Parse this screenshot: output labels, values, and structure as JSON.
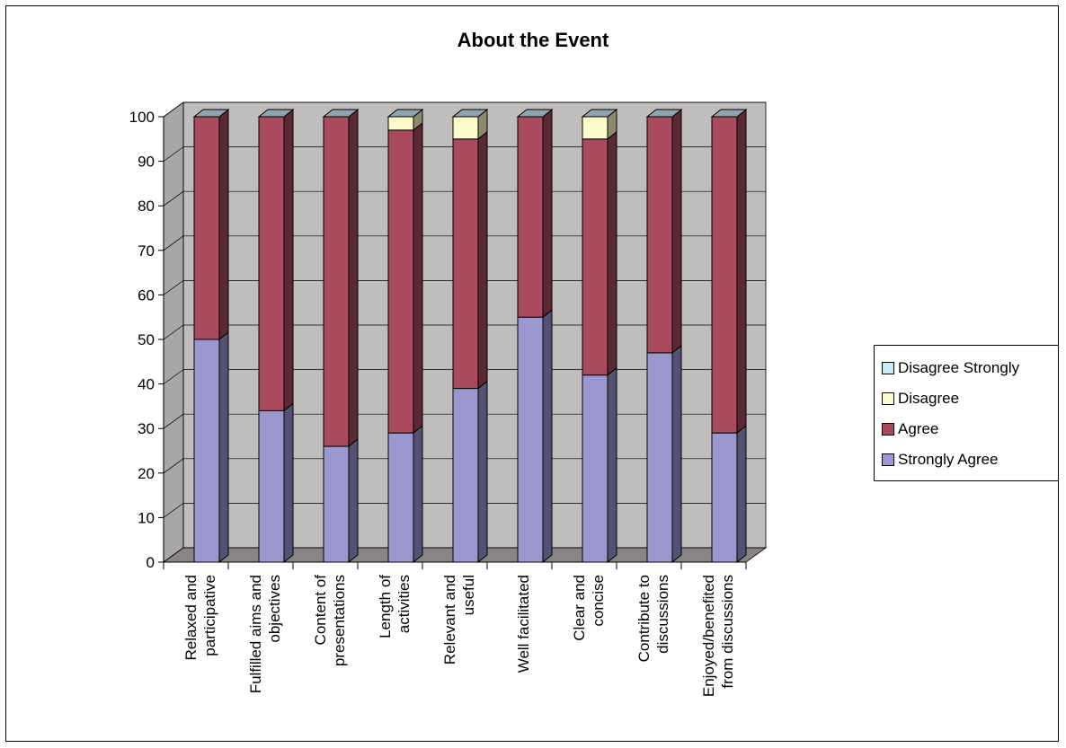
{
  "chart_data": {
    "type": "bar",
    "stacked": true,
    "three_d": true,
    "title": "About the Event",
    "xlabel": "",
    "ylabel": "",
    "ylim": [
      0,
      100
    ],
    "yticks": [
      0,
      10,
      20,
      30,
      40,
      50,
      60,
      70,
      80,
      90,
      100
    ],
    "grid": true,
    "legend_position": "right",
    "categories": [
      [
        "Relaxed and",
        "participative"
      ],
      [
        "Fulfilled aims and",
        "objectives"
      ],
      [
        "Content of",
        "presentations"
      ],
      [
        "Length of",
        "activities"
      ],
      [
        "Relevant and",
        "useful"
      ],
      [
        "Well facilitated"
      ],
      [
        "Clear and",
        "concise"
      ],
      [
        "Contribute to",
        "discussions"
      ],
      [
        "Enjoyed/benefited",
        "from discussions"
      ]
    ],
    "series": [
      {
        "name": "Strongly Agree",
        "color": "#9b97cf",
        "values": [
          50,
          34,
          26,
          29,
          39,
          55,
          42,
          47,
          29
        ]
      },
      {
        "name": "Agree",
        "color": "#a84a5c",
        "values": [
          50,
          66,
          74,
          68,
          56,
          45,
          53,
          53,
          71
        ]
      },
      {
        "name": "Disagree",
        "color": "#fdfccb",
        "values": [
          0,
          0,
          0,
          3,
          5,
          0,
          5,
          0,
          0
        ]
      },
      {
        "name": "Disagree Strongly",
        "color": "#c8ecfa",
        "values": [
          0,
          0,
          0,
          0,
          0,
          0,
          0,
          0,
          0
        ]
      }
    ],
    "legend_order": [
      "Disagree Strongly",
      "Disagree",
      "Agree",
      "Strongly Agree"
    ]
  }
}
